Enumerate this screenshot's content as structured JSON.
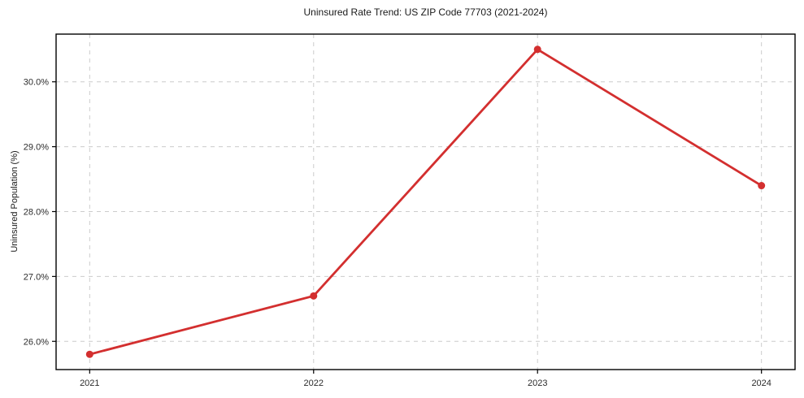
{
  "figure": {
    "background": "#ffffff"
  },
  "chart_data": {
    "type": "line",
    "title": "Uninsured Rate Trend: US ZIP Code 77703 (2021-2024)",
    "xlabel": "",
    "ylabel": "Uninsured Population (%)",
    "x": [
      2021,
      2022,
      2023,
      2024
    ],
    "series": [
      {
        "name": "Uninsured Rate",
        "values": [
          25.8,
          26.7,
          30.5,
          28.4
        ],
        "color": "#d32f2f",
        "marker": "circle"
      }
    ],
    "xticks": [
      2021,
      2022,
      2023,
      2024
    ],
    "xtick_labels": [
      "2021",
      "2022",
      "2023",
      "2024"
    ],
    "yticks": [
      26.0,
      27.0,
      28.0,
      29.0,
      30.0
    ],
    "ytick_labels": [
      "26.0%",
      "27.0%",
      "28.0%",
      "29.0%",
      "30.0%"
    ],
    "xlim": [
      2020.85,
      2024.15
    ],
    "ylim": [
      25.565,
      30.735
    ],
    "grid": true,
    "grid_color": "#cccccc",
    "grid_style": "dashed",
    "axis_color": "#000000",
    "tick_label_color": "#2b2b2b",
    "legend": "none"
  }
}
